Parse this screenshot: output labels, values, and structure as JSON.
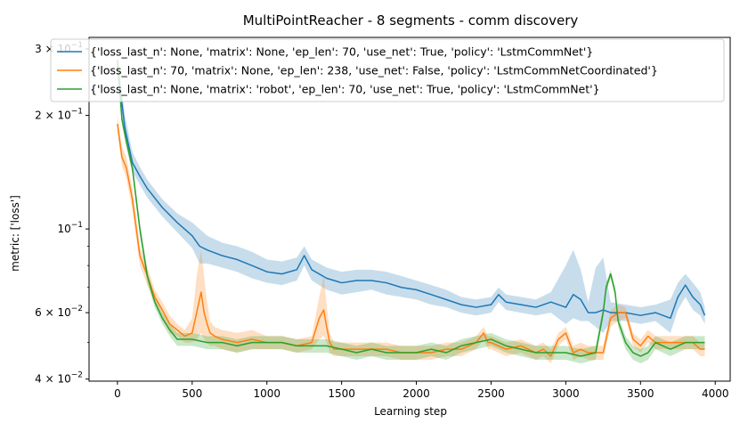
{
  "chart_data": {
    "type": "line",
    "title": "MultiPointReacher - 8 segments - comm discovery",
    "xlabel": "Learning step",
    "ylabel": "metric: ['loss']",
    "xlim": [
      -190,
      4100
    ],
    "ylim": [
      0.0395,
      0.322
    ],
    "yscale": "log",
    "x_ticks": [
      0,
      500,
      1000,
      1500,
      2000,
      2500,
      3000,
      3500,
      4000
    ],
    "x_tick_labels": [
      "0",
      "500",
      "1000",
      "1500",
      "2000",
      "2500",
      "3000",
      "3500",
      "4000"
    ],
    "y_ticks": [
      0.04,
      0.06,
      0.1,
      0.2,
      0.3
    ],
    "y_tick_labels": [
      {
        "base": "4 × 10",
        "exp": "−2"
      },
      {
        "base": "6 × 10",
        "exp": "−2"
      },
      {
        "base": "10",
        "exp": "−1"
      },
      {
        "base": "2 × 10",
        "exp": "−1"
      },
      {
        "base": "3 × 10",
        "exp": "−1"
      }
    ],
    "grid": false,
    "legend_position": "top",
    "series": [
      {
        "name": "{'loss_last_n': None, 'matrix': None, 'ep_len': 70, 'use_net': True, 'policy': 'LstmCommNet'}",
        "color": "#1f77b4",
        "x": [
          0,
          50,
          100,
          150,
          200,
          300,
          400,
          500,
          550,
          600,
          700,
          800,
          900,
          1000,
          1100,
          1200,
          1250,
          1300,
          1400,
          1500,
          1600,
          1700,
          1800,
          1900,
          2000,
          2100,
          2200,
          2300,
          2400,
          2500,
          2550,
          2600,
          2700,
          2800,
          2900,
          3000,
          3050,
          3100,
          3150,
          3200,
          3250,
          3300,
          3400,
          3500,
          3600,
          3700,
          3750,
          3800,
          3850,
          3900,
          3930
        ],
        "y": [
          0.27,
          0.185,
          0.15,
          0.138,
          0.128,
          0.114,
          0.104,
          0.096,
          0.09,
          0.088,
          0.085,
          0.083,
          0.08,
          0.077,
          0.076,
          0.078,
          0.085,
          0.078,
          0.074,
          0.072,
          0.073,
          0.073,
          0.072,
          0.07,
          0.069,
          0.067,
          0.065,
          0.063,
          0.062,
          0.063,
          0.067,
          0.064,
          0.063,
          0.062,
          0.064,
          0.062,
          0.067,
          0.065,
          0.06,
          0.06,
          0.061,
          0.06,
          0.06,
          0.059,
          0.06,
          0.058,
          0.066,
          0.071,
          0.066,
          0.063,
          0.059
        ],
        "band_upper": [
          0.29,
          0.2,
          0.16,
          0.146,
          0.135,
          0.12,
          0.11,
          0.104,
          0.1,
          0.096,
          0.092,
          0.09,
          0.087,
          0.083,
          0.082,
          0.084,
          0.09,
          0.083,
          0.079,
          0.077,
          0.078,
          0.078,
          0.077,
          0.075,
          0.073,
          0.071,
          0.069,
          0.066,
          0.065,
          0.066,
          0.07,
          0.067,
          0.066,
          0.065,
          0.068,
          0.08,
          0.088,
          0.078,
          0.064,
          0.079,
          0.084,
          0.064,
          0.063,
          0.062,
          0.063,
          0.065,
          0.072,
          0.076,
          0.072,
          0.068,
          0.062
        ],
        "band_lower": [
          0.25,
          0.175,
          0.142,
          0.131,
          0.121,
          0.108,
          0.098,
          0.089,
          0.081,
          0.081,
          0.079,
          0.077,
          0.074,
          0.072,
          0.071,
          0.073,
          0.08,
          0.073,
          0.069,
          0.067,
          0.068,
          0.069,
          0.067,
          0.066,
          0.065,
          0.063,
          0.062,
          0.06,
          0.059,
          0.06,
          0.064,
          0.061,
          0.06,
          0.059,
          0.06,
          0.056,
          0.058,
          0.057,
          0.057,
          0.055,
          0.053,
          0.057,
          0.057,
          0.056,
          0.057,
          0.053,
          0.061,
          0.066,
          0.061,
          0.059,
          0.056
        ]
      },
      {
        "name": "{'loss_last_n': 70, 'matrix': None, 'ep_len': 238, 'use_net': False, 'policy': 'LstmCommNetCoordinated'}",
        "color": "#ff7f0e",
        "x": [
          0,
          30,
          60,
          100,
          150,
          200,
          250,
          300,
          350,
          400,
          450,
          500,
          530,
          560,
          580,
          600,
          620,
          650,
          700,
          800,
          900,
          1000,
          1100,
          1200,
          1300,
          1350,
          1380,
          1400,
          1420,
          1450,
          1500,
          1600,
          1700,
          1800,
          1900,
          2000,
          2100,
          2200,
          2300,
          2400,
          2450,
          2480,
          2500,
          2600,
          2700,
          2800,
          2850,
          2900,
          2950,
          3000,
          3050,
          3100,
          3150,
          3200,
          3250,
          3300,
          3350,
          3400,
          3450,
          3500,
          3550,
          3600,
          3700,
          3800,
          3850,
          3900,
          3930
        ],
        "y": [
          0.19,
          0.155,
          0.145,
          0.12,
          0.085,
          0.075,
          0.066,
          0.061,
          0.056,
          0.054,
          0.052,
          0.053,
          0.06,
          0.068,
          0.06,
          0.056,
          0.053,
          0.052,
          0.051,
          0.05,
          0.051,
          0.05,
          0.05,
          0.049,
          0.05,
          0.058,
          0.061,
          0.055,
          0.05,
          0.048,
          0.048,
          0.048,
          0.048,
          0.048,
          0.047,
          0.047,
          0.047,
          0.048,
          0.048,
          0.05,
          0.053,
          0.05,
          0.05,
          0.048,
          0.049,
          0.047,
          0.048,
          0.046,
          0.051,
          0.053,
          0.047,
          0.048,
          0.047,
          0.047,
          0.047,
          0.058,
          0.06,
          0.06,
          0.051,
          0.049,
          0.052,
          0.05,
          0.05,
          0.05,
          0.05,
          0.048,
          0.048
        ],
        "band_upper": [
          0.2,
          0.165,
          0.155,
          0.128,
          0.09,
          0.079,
          0.069,
          0.064,
          0.059,
          0.056,
          0.054,
          0.058,
          0.075,
          0.088,
          0.075,
          0.064,
          0.057,
          0.055,
          0.054,
          0.053,
          0.054,
          0.052,
          0.052,
          0.051,
          0.052,
          0.066,
          0.075,
          0.063,
          0.053,
          0.05,
          0.05,
          0.05,
          0.05,
          0.05,
          0.049,
          0.049,
          0.049,
          0.05,
          0.05,
          0.052,
          0.055,
          0.052,
          0.052,
          0.05,
          0.051,
          0.049,
          0.05,
          0.048,
          0.053,
          0.055,
          0.049,
          0.05,
          0.049,
          0.049,
          0.049,
          0.061,
          0.063,
          0.062,
          0.053,
          0.051,
          0.054,
          0.052,
          0.052,
          0.052,
          0.052,
          0.05,
          0.05
        ],
        "band_lower": [
          0.18,
          0.147,
          0.136,
          0.112,
          0.08,
          0.071,
          0.063,
          0.058,
          0.053,
          0.052,
          0.05,
          0.05,
          0.051,
          0.053,
          0.051,
          0.05,
          0.049,
          0.049,
          0.048,
          0.047,
          0.048,
          0.048,
          0.048,
          0.047,
          0.048,
          0.051,
          0.052,
          0.05,
          0.047,
          0.046,
          0.046,
          0.046,
          0.046,
          0.046,
          0.045,
          0.045,
          0.045,
          0.046,
          0.046,
          0.048,
          0.051,
          0.048,
          0.048,
          0.046,
          0.047,
          0.045,
          0.046,
          0.044,
          0.049,
          0.051,
          0.045,
          0.046,
          0.045,
          0.045,
          0.045,
          0.055,
          0.057,
          0.058,
          0.049,
          0.047,
          0.05,
          0.048,
          0.048,
          0.048,
          0.048,
          0.046,
          0.046
        ]
      },
      {
        "name": "{'loss_last_n': None, 'matrix': 'robot', 'ep_len': 70, 'use_net': True, 'policy': 'LstmCommNet'}",
        "color": "#2ca02c",
        "x": [
          0,
          30,
          60,
          100,
          150,
          200,
          250,
          300,
          350,
          400,
          500,
          600,
          700,
          800,
          900,
          1000,
          1100,
          1200,
          1300,
          1400,
          1500,
          1600,
          1700,
          1800,
          1900,
          2000,
          2100,
          2200,
          2300,
          2400,
          2500,
          2600,
          2700,
          2800,
          2900,
          3000,
          3100,
          3200,
          3250,
          3270,
          3300,
          3330,
          3350,
          3400,
          3450,
          3500,
          3550,
          3600,
          3700,
          3800,
          3900,
          3930
        ],
        "y": [
          0.28,
          0.195,
          0.17,
          0.145,
          0.1,
          0.075,
          0.064,
          0.058,
          0.054,
          0.051,
          0.051,
          0.05,
          0.05,
          0.049,
          0.05,
          0.05,
          0.05,
          0.049,
          0.049,
          0.049,
          0.048,
          0.047,
          0.048,
          0.047,
          0.047,
          0.047,
          0.048,
          0.047,
          0.049,
          0.05,
          0.051,
          0.049,
          0.048,
          0.047,
          0.047,
          0.047,
          0.046,
          0.047,
          0.06,
          0.07,
          0.076,
          0.068,
          0.057,
          0.05,
          0.047,
          0.046,
          0.047,
          0.05,
          0.048,
          0.05,
          0.05,
          0.05
        ],
        "band_upper": [
          0.29,
          0.2,
          0.175,
          0.15,
          0.104,
          0.078,
          0.066,
          0.06,
          0.056,
          0.053,
          0.053,
          0.052,
          0.052,
          0.051,
          0.052,
          0.052,
          0.052,
          0.051,
          0.051,
          0.051,
          0.05,
          0.049,
          0.05,
          0.049,
          0.049,
          0.049,
          0.05,
          0.049,
          0.051,
          0.052,
          0.053,
          0.051,
          0.05,
          0.049,
          0.049,
          0.049,
          0.048,
          0.049,
          0.062,
          0.072,
          0.078,
          0.07,
          0.059,
          0.052,
          0.049,
          0.048,
          0.049,
          0.052,
          0.05,
          0.052,
          0.052,
          0.052
        ],
        "band_lower": [
          0.27,
          0.19,
          0.165,
          0.14,
          0.096,
          0.072,
          0.062,
          0.056,
          0.052,
          0.049,
          0.049,
          0.048,
          0.048,
          0.047,
          0.048,
          0.048,
          0.048,
          0.047,
          0.047,
          0.047,
          0.046,
          0.045,
          0.046,
          0.045,
          0.045,
          0.045,
          0.046,
          0.045,
          0.047,
          0.048,
          0.049,
          0.047,
          0.046,
          0.045,
          0.045,
          0.045,
          0.044,
          0.045,
          0.058,
          0.068,
          0.074,
          0.066,
          0.055,
          0.048,
          0.045,
          0.044,
          0.045,
          0.048,
          0.046,
          0.048,
          0.048,
          0.048
        ]
      }
    ]
  }
}
